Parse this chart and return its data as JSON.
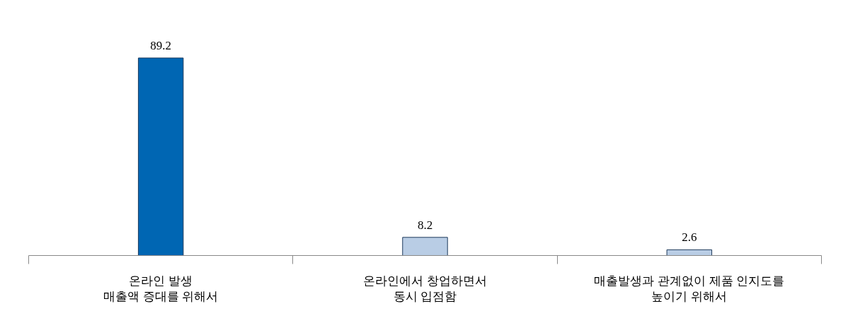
{
  "chart_data": {
    "type": "bar",
    "categories": [
      "온라인 발생\n매출액 증대를 위해서",
      "온라인에서 창업하면서\n동시 입점함",
      "매출발생과 관계없이 제품 인지도를\n높이기 위해서"
    ],
    "values": [
      89.2,
      8.2,
      2.6
    ],
    "colors": [
      "#0066b3",
      "#b9cde5",
      "#b9cde5"
    ],
    "data_labels": true
  }
}
